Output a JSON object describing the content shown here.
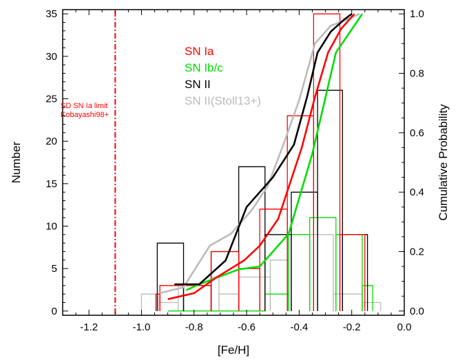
{
  "chart_data": {
    "type": "line",
    "xlabel": "[Fe/H]",
    "ylabel": "Number",
    "y2label": "Cumulative Probability",
    "xlim": [
      -1.3,
      0.0
    ],
    "ylim": [
      -0.5,
      35.5
    ],
    "y2lim": [
      -0.0143,
      1.0143
    ],
    "x_ticks": [
      -1.2,
      -1.0,
      -0.8,
      -0.6,
      -0.4,
      -0.2,
      0.0
    ],
    "x_tick_labels": [
      "-1.2",
      "-1.0",
      "-0.8",
      "-0.6",
      "-0.4",
      "-0.2",
      "0.0"
    ],
    "y_ticks": [
      0,
      5,
      10,
      15,
      20,
      25,
      30,
      35
    ],
    "y_tick_labels": [
      "0",
      "5",
      "10",
      "15",
      "20",
      "25",
      "30",
      "35"
    ],
    "y2_ticks": [
      0.0,
      0.2,
      0.4,
      0.6,
      0.8,
      1.0
    ],
    "y2_tick_labels": [
      "0.0",
      "0.2",
      "0.4",
      "0.6",
      "0.8",
      "1.0"
    ],
    "legend": {
      "placement": "top-center",
      "entries": [
        {
          "label": "SN Ia",
          "color": "#ff0000"
        },
        {
          "label": "SN Ib/c",
          "color": "#00dd00"
        },
        {
          "label": "SN II",
          "color": "#000000"
        },
        {
          "label": "SN II(Stoll13+)",
          "color": "#bbbbbb"
        }
      ]
    },
    "annotation": {
      "lines": [
        "SD SN Ia limit",
        "Kobayashi98+"
      ],
      "x": -1.1,
      "color": "#ff0000"
    },
    "histograms": [
      {
        "name": "SN II",
        "color": "#000000",
        "edges": [
          -0.94,
          -0.84,
          -0.735,
          -0.63,
          -0.53,
          -0.43,
          -0.33,
          -0.235,
          -0.14
        ],
        "counts": [
          8,
          3,
          7,
          17,
          9,
          14,
          26,
          9
        ]
      },
      {
        "name": "SN Ia",
        "color": "#ff0000",
        "edges": [
          -0.945,
          -0.93,
          -0.735,
          -0.63,
          -0.55,
          -0.445,
          -0.345,
          -0.245,
          -0.15
        ],
        "counts": [
          2,
          3,
          7,
          5,
          12,
          23,
          35,
          9
        ]
      },
      {
        "name": "SN Ib/c",
        "color": "#00dd00",
        "edges": [
          -0.9,
          -0.74,
          -0.53,
          -0.44,
          -0.36,
          -0.26,
          -0.16,
          -0.12
        ],
        "counts": [
          0,
          0,
          2,
          9,
          11,
          9,
          3,
          0
        ]
      },
      {
        "name": "SN II(Stoll13+)",
        "color": "#bbbbbb",
        "edges": [
          -1.0,
          -0.935,
          -0.86,
          -0.735,
          -0.705,
          -0.63,
          -0.55,
          -0.51,
          -0.44,
          -0.36,
          -0.27,
          -0.16,
          -0.09
        ],
        "counts": [
          2,
          1,
          3,
          4,
          2,
          4,
          4,
          6,
          9,
          9,
          2,
          1
        ]
      }
    ],
    "cumulative": [
      {
        "name": "SN II(Stoll13+)",
        "color": "#bbbbbb",
        "x": [
          -0.93,
          -0.84,
          -0.74,
          -0.66,
          -0.58,
          -0.52,
          -0.46,
          -0.4,
          -0.34,
          -0.28,
          -0.22,
          -0.17
        ],
        "y": [
          0.06,
          0.08,
          0.22,
          0.26,
          0.34,
          0.42,
          0.56,
          0.71,
          0.9,
          0.96,
          0.98,
          1.0
        ]
      },
      {
        "name": "SN Ib/c",
        "color": "#00dd00",
        "x": [
          -0.83,
          -0.78,
          -0.72,
          -0.63,
          -0.55,
          -0.44,
          -0.35,
          -0.26,
          -0.16
        ],
        "y": [
          0.07,
          0.09,
          0.11,
          0.14,
          0.15,
          0.26,
          0.53,
          0.87,
          1.0
        ]
      },
      {
        "name": "SN Ia",
        "color": "#ff0000",
        "x": [
          -0.9,
          -0.8,
          -0.72,
          -0.61,
          -0.55,
          -0.48,
          -0.39,
          -0.34,
          -0.29,
          -0.24,
          -0.19
        ],
        "y": [
          0.04,
          0.06,
          0.11,
          0.17,
          0.22,
          0.31,
          0.55,
          0.72,
          0.87,
          0.95,
          1.0
        ]
      },
      {
        "name": "SN II",
        "color": "#000000",
        "x": [
          -0.875,
          -0.78,
          -0.68,
          -0.6,
          -0.5,
          -0.42,
          -0.37,
          -0.33,
          -0.28,
          -0.23,
          -0.2
        ],
        "y": [
          0.09,
          0.09,
          0.17,
          0.35,
          0.45,
          0.56,
          0.72,
          0.87,
          0.94,
          0.98,
          1.0
        ]
      }
    ],
    "grid": false
  }
}
